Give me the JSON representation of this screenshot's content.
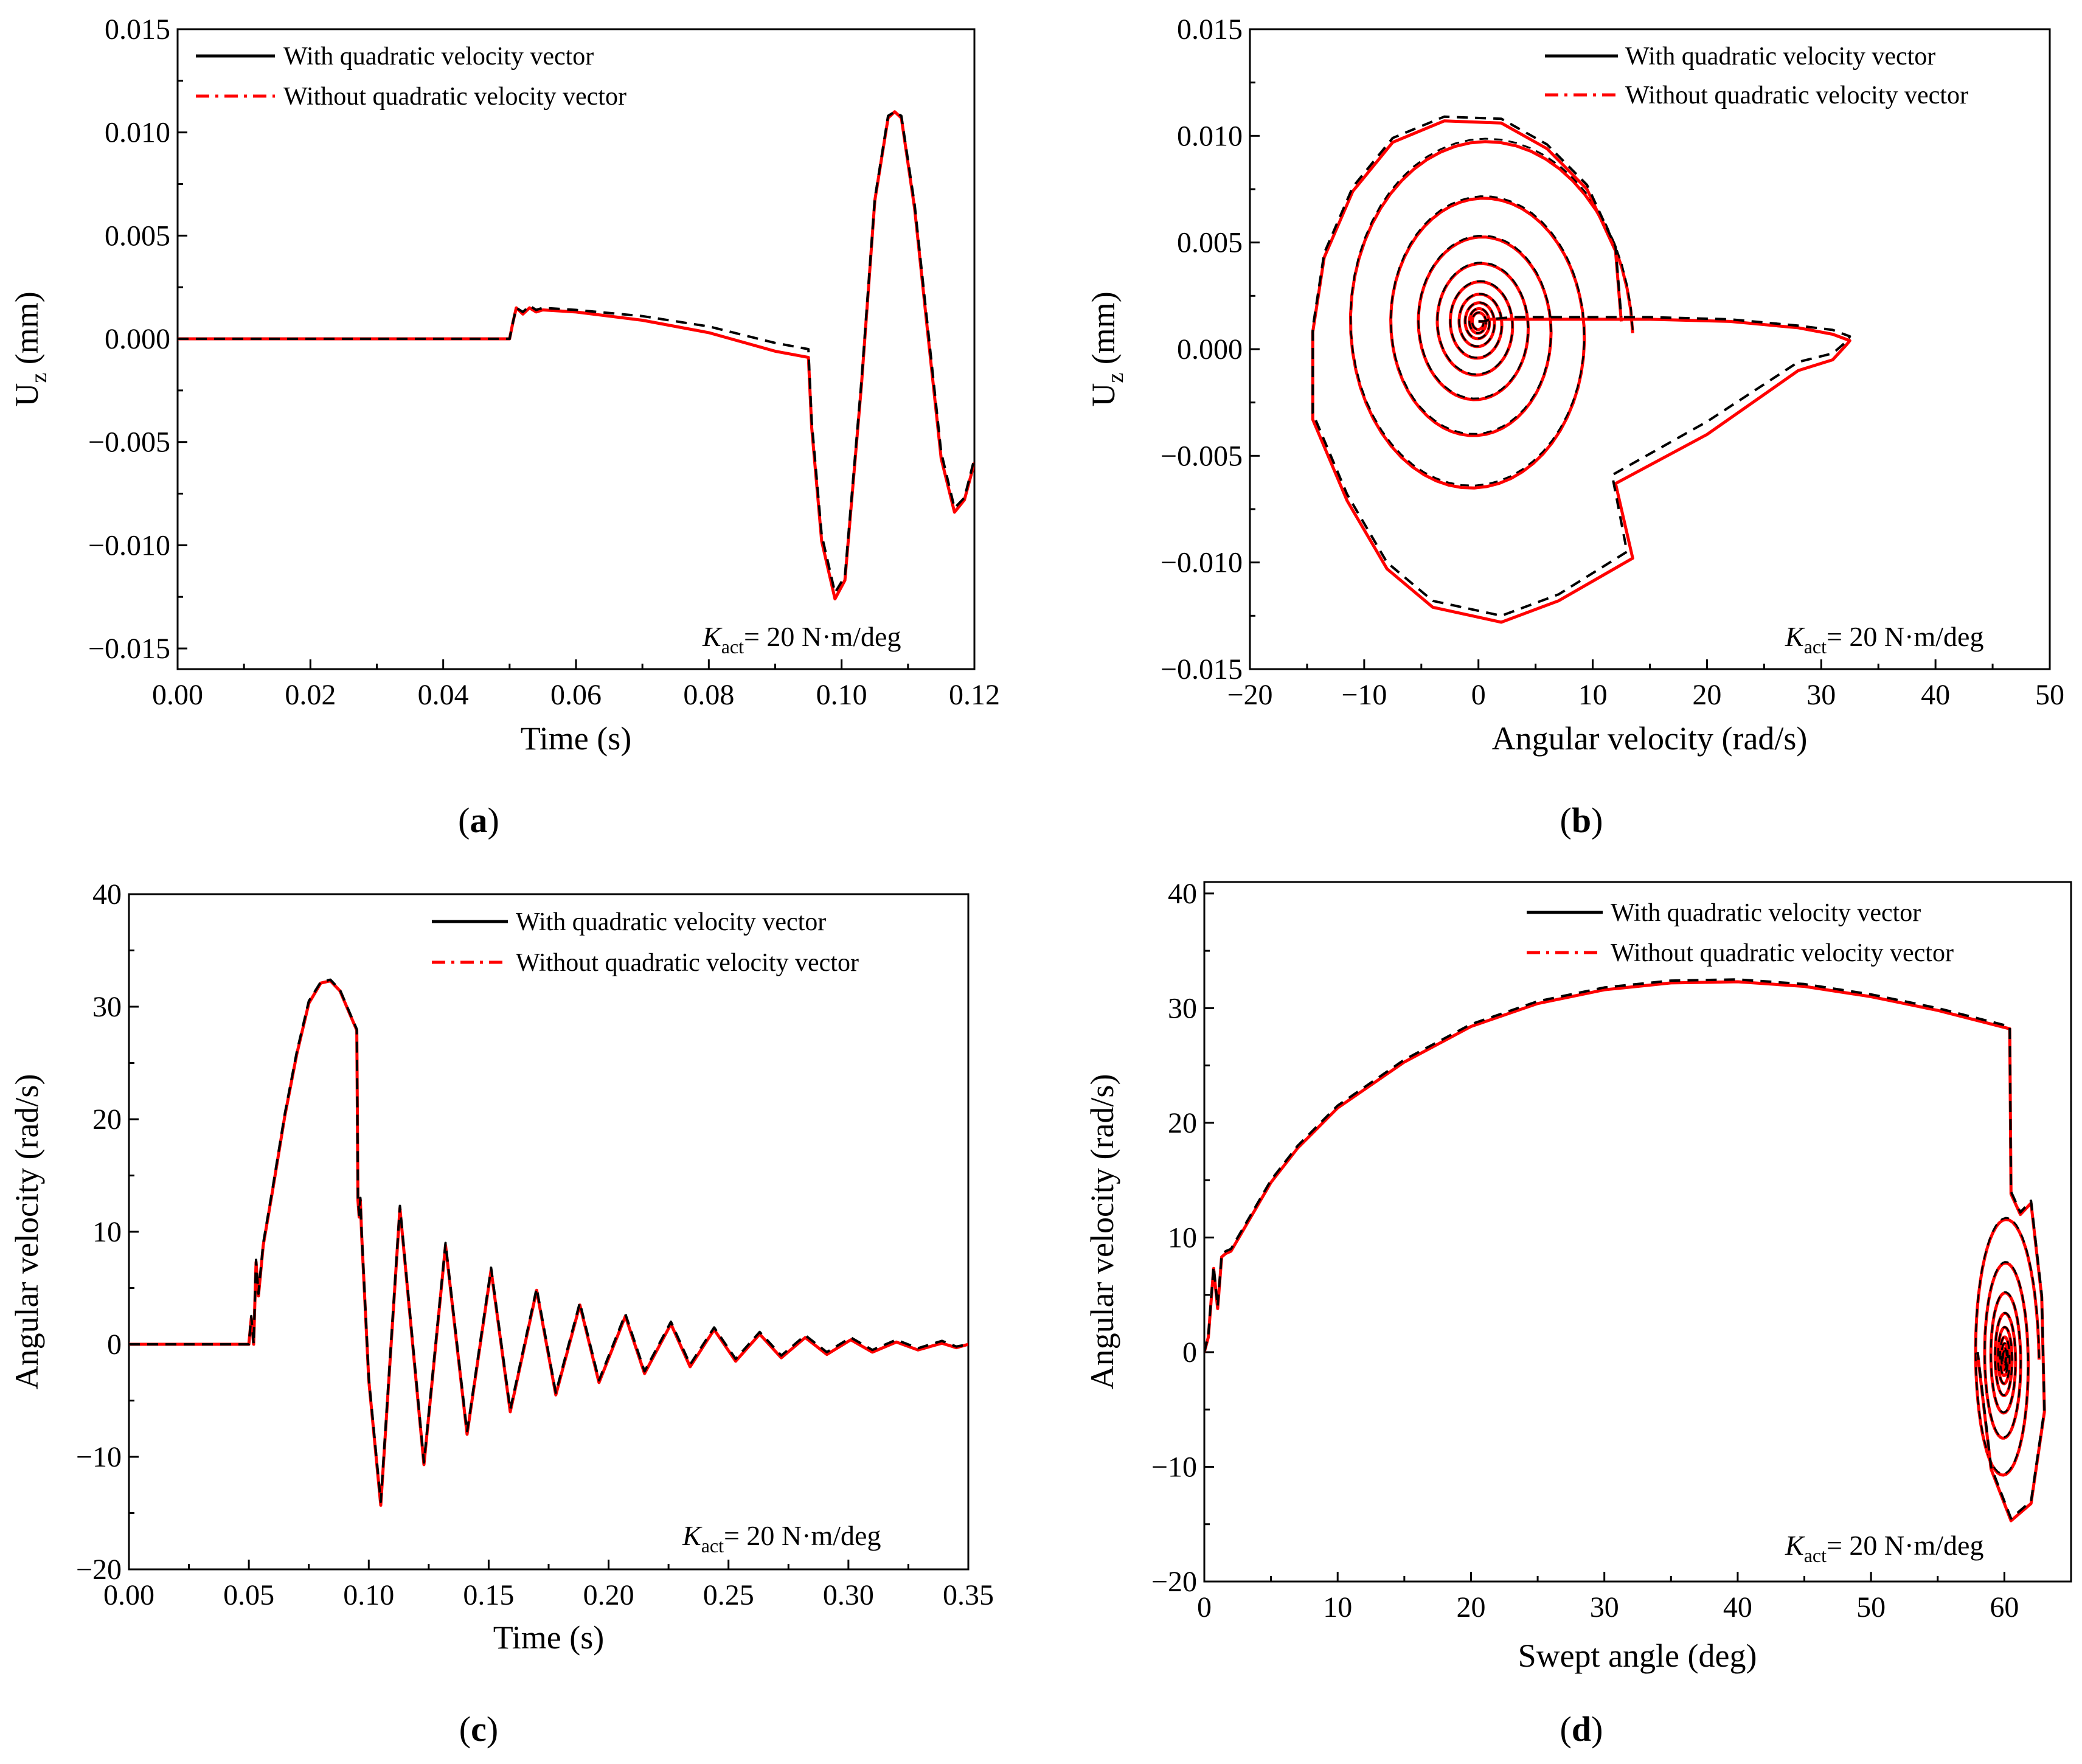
{
  "legend": {
    "with": "With quadratic velocity vector",
    "without": "Without quadratic velocity vector"
  },
  "colors": {
    "with": "#000000",
    "without": "#ff0000",
    "axis": "#000000"
  },
  "annotation": {
    "k": "K",
    "sub": "act",
    "rest": "= 20 N·m/deg"
  },
  "chart_data": [
    {
      "id": "a",
      "type": "line",
      "caption_open": "(",
      "caption_letter": "a",
      "caption_close": ")",
      "xlabel": "Time (s)",
      "ylabel_main": "U",
      "ylabel_sub": "z",
      "ylabel_rest": " (mm)",
      "xlim": [
        0,
        0.12
      ],
      "ylim": [
        -0.016,
        0.015
      ],
      "xticks": [
        0.0,
        0.02,
        0.04,
        0.06,
        0.08,
        0.1,
        0.12
      ],
      "xtick_labels": [
        "0.00",
        "0.02",
        "0.04",
        "0.06",
        "0.08",
        "0.10",
        "0.12"
      ],
      "yticks": [
        -0.015,
        -0.01,
        -0.005,
        0.0,
        0.005,
        0.01,
        0.015
      ],
      "ytick_labels": [
        "−0.015",
        "−0.010",
        "−0.005",
        "0.000",
        "0.005",
        "0.010",
        "0.015"
      ],
      "series": [
        {
          "name": "With quadratic velocity vector",
          "x": [
            0,
            0.05,
            0.0505,
            0.051,
            0.052,
            0.053,
            0.054,
            0.055,
            0.06,
            0.07,
            0.08,
            0.09,
            0.095,
            0.0955,
            0.097,
            0.099,
            0.1005,
            0.103,
            0.105,
            0.107,
            0.108,
            0.109,
            0.111,
            0.113,
            0.115,
            0.117,
            0.1185,
            0.12
          ],
          "y": [
            0,
            0,
            0.0008,
            0.0015,
            0.0013,
            0.0016,
            0.0014,
            0.0015,
            0.0014,
            0.0011,
            0.0006,
            -0.0002,
            -0.0005,
            -0.004,
            -0.0095,
            -0.0123,
            -0.0115,
            -0.002,
            0.0068,
            0.0108,
            0.011,
            0.0108,
            0.0065,
            0.0005,
            -0.0055,
            -0.0082,
            -0.0077,
            -0.0058
          ]
        },
        {
          "name": "Without quadratic velocity vector",
          "x": [
            0,
            0.05,
            0.0505,
            0.051,
            0.052,
            0.053,
            0.054,
            0.055,
            0.06,
            0.07,
            0.08,
            0.09,
            0.095,
            0.0955,
            0.097,
            0.099,
            0.1005,
            0.103,
            0.105,
            0.107,
            0.108,
            0.109,
            0.111,
            0.113,
            0.115,
            0.117,
            0.1185,
            0.12
          ],
          "y": [
            0,
            0,
            0.0008,
            0.0015,
            0.0012,
            0.0015,
            0.0013,
            0.0014,
            0.0013,
            0.0009,
            0.0003,
            -0.0006,
            -0.0009,
            -0.0043,
            -0.0098,
            -0.0126,
            -0.0117,
            -0.0022,
            0.0067,
            0.0107,
            0.011,
            0.0107,
            0.0063,
            0.0002,
            -0.0058,
            -0.0084,
            -0.0078,
            -0.006
          ]
        }
      ]
    },
    {
      "id": "b",
      "type": "line",
      "caption_open": "(",
      "caption_letter": "b",
      "caption_close": ")",
      "xlabel": "Angular velocity (rad/s)",
      "ylabel_main": "U",
      "ylabel_sub": "z",
      "ylabel_rest": " (mm)",
      "xlim": [
        -20,
        50
      ],
      "ylim": [
        -0.015,
        0.015
      ],
      "xticks": [
        -20,
        -10,
        0,
        10,
        20,
        30,
        40,
        50
      ],
      "xtick_labels": [
        "−20",
        "−10",
        "0",
        "10",
        "20",
        "30",
        "40",
        "50"
      ],
      "yticks": [
        -0.015,
        -0.01,
        -0.005,
        0.0,
        0.005,
        0.01,
        0.015
      ],
      "ytick_labels": [
        "−0.015",
        "−0.010",
        "−0.005",
        "0.000",
        "0.005",
        "0.010",
        "0.015"
      ],
      "spiral": {
        "cx": 0,
        "cy": 0.0013,
        "turns": 9
      },
      "series": [
        {
          "name": "With quadratic velocity vector",
          "x": [
            0,
            0.5,
            1,
            3,
            8,
            15,
            22,
            28,
            31,
            32.5,
            32.3,
            31,
            28,
            20,
            11.7,
            11.7,
            13,
            7,
            2,
            -4,
            -8,
            -11.5,
            -14.5,
            -14.5,
            -13.5,
            -11,
            -7.5,
            -3,
            2,
            6,
            9.5,
            12,
            12.5
          ],
          "y": [
            0.0013,
            0.0013,
            0.0014,
            0.0015,
            0.0015,
            0.0015,
            0.0014,
            0.0011,
            0.0009,
            0.0006,
            0.0004,
            -0.0002,
            -0.0006,
            -0.0034,
            -0.0059,
            -0.0059,
            -0.0095,
            -0.0115,
            -0.0125,
            -0.0118,
            -0.01,
            -0.0068,
            -0.003,
            0.001,
            0.0045,
            0.0076,
            0.0099,
            0.0109,
            0.0108,
            0.0096,
            0.0077,
            0.0048,
            0.0015
          ]
        },
        {
          "name": "Without quadratic velocity vector",
          "x": [
            0,
            0.5,
            1,
            3,
            8,
            15,
            22,
            28,
            31,
            32.5,
            32.2,
            31,
            28,
            20,
            12,
            12,
            13.5,
            7,
            2,
            -4,
            -8,
            -11.5,
            -14.5,
            -14.5,
            -13.5,
            -11,
            -7.5,
            -3,
            2,
            6,
            9.5,
            12,
            12.5
          ],
          "y": [
            0.0013,
            0.0013,
            0.0014,
            0.0014,
            0.0014,
            0.0014,
            0.0013,
            0.001,
            0.0007,
            0.0004,
            0.0002,
            -0.0005,
            -0.001,
            -0.004,
            -0.0063,
            -0.0063,
            -0.0098,
            -0.0118,
            -0.0128,
            -0.0121,
            -0.0103,
            -0.0071,
            -0.0033,
            0.0008,
            0.0043,
            0.0074,
            0.0097,
            0.0107,
            0.0106,
            0.0094,
            0.0075,
            0.0046,
            0.0013
          ]
        }
      ]
    },
    {
      "id": "c",
      "type": "line",
      "caption_open": "(",
      "caption_letter": "c",
      "caption_close": ")",
      "xlabel": "Time (s)",
      "ylabel_main": "Angular velocity (rad/s)",
      "ylabel_sub": "",
      "ylabel_rest": "",
      "xlim": [
        0,
        0.35
      ],
      "ylim": [
        -20,
        40
      ],
      "xticks": [
        0.0,
        0.05,
        0.1,
        0.15,
        0.2,
        0.25,
        0.3,
        0.35
      ],
      "xtick_labels": [
        "0.00",
        "0.05",
        "0.10",
        "0.15",
        "0.20",
        "0.25",
        "0.30",
        "0.35"
      ],
      "yticks": [
        -20,
        -10,
        0,
        10,
        20,
        30,
        40
      ],
      "ytick_labels": [
        "−20",
        "−10",
        "0",
        "10",
        "20",
        "30",
        "40"
      ],
      "series": [
        {
          "name": "With quadratic velocity vector",
          "x": [
            0,
            0.05,
            0.051,
            0.052,
            0.053,
            0.054,
            0.056,
            0.06,
            0.065,
            0.07,
            0.075,
            0.08,
            0.084,
            0.088,
            0.092,
            0.095,
            0.0955,
            0.096,
            0.0965,
            0.097,
            0.1,
            0.105,
            0.113,
            0.123,
            0.132,
            0.141,
            0.151,
            0.159,
            0.17,
            0.178,
            0.188,
            0.196,
            0.207,
            0.215,
            0.226,
            0.234,
            0.244,
            0.253,
            0.263,
            0.272,
            0.282,
            0.291,
            0.301,
            0.31,
            0.32,
            0.329,
            0.339,
            0.345,
            0.35
          ],
          "y": [
            0,
            0,
            2.5,
            0,
            7.5,
            4.5,
            9,
            14,
            20.5,
            26,
            30.5,
            32.2,
            32.4,
            31.5,
            29.5,
            28,
            13,
            11.5,
            13,
            10,
            -3,
            -14,
            12.3,
            -10.5,
            9,
            -7.8,
            6.8,
            -5.8,
            5,
            -4.3,
            3.7,
            -3.2,
            2.7,
            -2.4,
            2,
            -1.8,
            1.5,
            -1.3,
            1.1,
            -1,
            0.8,
            -0.7,
            0.6,
            -0.5,
            0.4,
            -0.35,
            0.3,
            -0.2,
            0
          ]
        },
        {
          "name": "Without quadratic velocity vector",
          "x": [
            0,
            0.05,
            0.051,
            0.052,
            0.053,
            0.054,
            0.056,
            0.06,
            0.065,
            0.07,
            0.075,
            0.08,
            0.084,
            0.088,
            0.092,
            0.095,
            0.0955,
            0.096,
            0.0965,
            0.097,
            0.1,
            0.105,
            0.113,
            0.123,
            0.132,
            0.141,
            0.151,
            0.159,
            0.17,
            0.178,
            0.188,
            0.196,
            0.207,
            0.215,
            0.226,
            0.234,
            0.244,
            0.253,
            0.263,
            0.272,
            0.282,
            0.291,
            0.301,
            0.31,
            0.32,
            0.329,
            0.339,
            0.345,
            0.35
          ],
          "y": [
            0,
            0,
            2.3,
            0,
            7.3,
            4.3,
            8.8,
            13.8,
            20.3,
            25.8,
            30.3,
            32.1,
            32.3,
            31.4,
            29.4,
            27.9,
            12.8,
            11.3,
            12.8,
            9.8,
            -3.2,
            -14.3,
            12.1,
            -10.7,
            8.8,
            -8,
            6.6,
            -6,
            4.8,
            -4.5,
            3.5,
            -3.4,
            2.5,
            -2.6,
            1.8,
            -2,
            1.3,
            -1.5,
            0.9,
            -1.2,
            0.6,
            -0.9,
            0.4,
            -0.7,
            0.2,
            -0.5,
            0.1,
            -0.3,
            0
          ]
        }
      ]
    },
    {
      "id": "d",
      "type": "line",
      "caption_open": "(",
      "caption_letter": "d",
      "caption_close": ")",
      "xlabel": "Swept angle (deg)",
      "ylabel_main": "Angular velocity (rad/s)",
      "ylabel_sub": "",
      "ylabel_rest": "",
      "xlim": [
        0,
        65
      ],
      "ylim": [
        -20,
        41
      ],
      "xticks": [
        0,
        10,
        20,
        30,
        40,
        50,
        60
      ],
      "xtick_labels": [
        "0",
        "10",
        "20",
        "30",
        "40",
        "50",
        "60"
      ],
      "yticks": [
        -20,
        -10,
        0,
        10,
        20,
        30,
        40
      ],
      "ytick_labels": [
        "−20",
        "−10",
        "0",
        "10",
        "20",
        "30",
        "40"
      ],
      "spiral": {
        "cx": 60,
        "cy": -0.5,
        "turns": 9
      },
      "series": [
        {
          "name": "With quadratic velocity vector",
          "x": [
            0,
            0.3,
            0.7,
            1.0,
            1.3,
            1.6,
            2,
            3,
            4,
            5,
            7,
            10,
            15,
            20,
            25,
            30,
            35,
            40,
            45,
            50,
            55,
            60.4,
            60.5,
            61.2,
            62,
            62.8,
            63,
            62,
            60.5,
            59,
            58
          ],
          "y": [
            0,
            1.5,
            7.5,
            4,
            8.5,
            8.8,
            9,
            11,
            13,
            15,
            18,
            21.5,
            25.5,
            28.6,
            30.6,
            31.8,
            32.4,
            32.5,
            32.1,
            31.2,
            30,
            28.4,
            14,
            12.2,
            13.2,
            5,
            -5,
            -13,
            -14.5,
            -10,
            0
          ]
        },
        {
          "name": "Without quadratic velocity vector",
          "x": [
            0,
            0.3,
            0.7,
            1.0,
            1.3,
            1.6,
            2,
            3,
            4,
            5,
            7,
            10,
            15,
            20,
            25,
            30,
            35,
            40,
            45,
            50,
            55,
            60.4,
            60.5,
            61.2,
            62,
            62.8,
            63,
            62,
            60.5,
            59,
            58
          ],
          "y": [
            0,
            1.3,
            7.3,
            3.8,
            8.3,
            8.6,
            8.8,
            10.8,
            12.8,
            14.8,
            17.8,
            21.3,
            25.3,
            28.4,
            30.4,
            31.6,
            32.2,
            32.3,
            31.9,
            31,
            29.8,
            28.2,
            13.8,
            12,
            13,
            4.8,
            -5.2,
            -13.2,
            -14.7,
            -10.2,
            -0.2
          ]
        }
      ]
    }
  ]
}
